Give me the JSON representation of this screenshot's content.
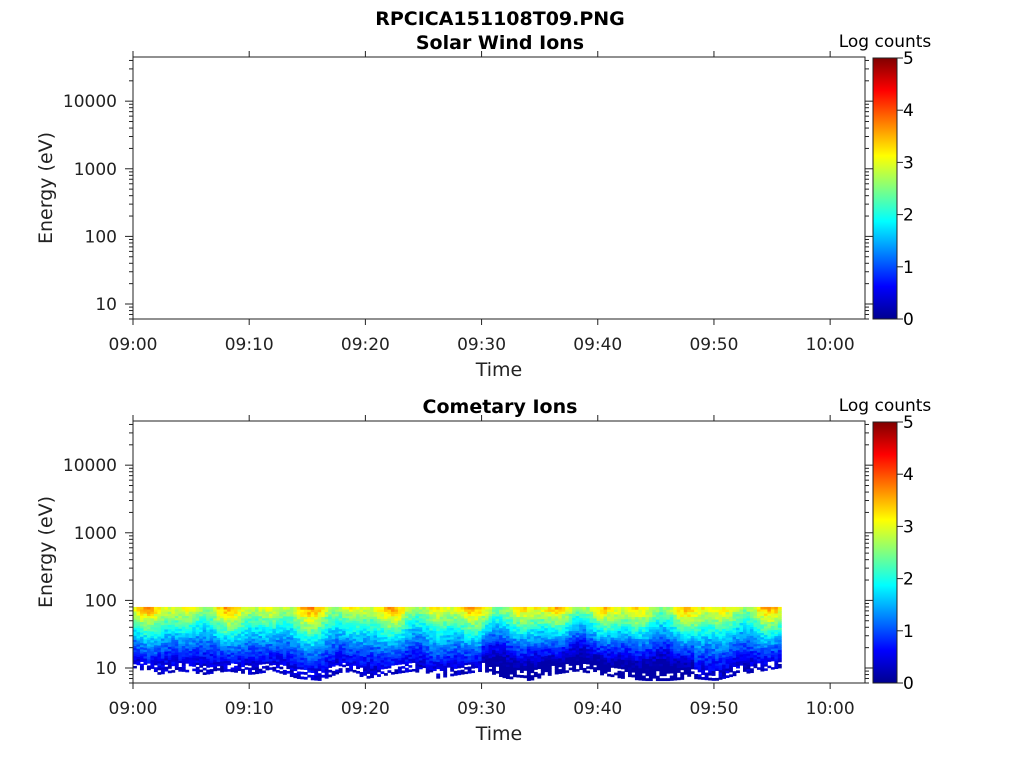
{
  "figure": {
    "title": "RPCICA151108T09.PNG"
  },
  "colormap": [
    "#00008f",
    "#0000ff",
    "#0080ff",
    "#00ffff",
    "#80ff80",
    "#ffff00",
    "#ff8000",
    "#ff0000",
    "#800000"
  ],
  "chart_data": [
    {
      "type": "heatmap",
      "title": "Solar Wind Ions",
      "xlabel": "Time",
      "ylabel": "Energy (eV)",
      "x_ticks": [
        "09:00",
        "09:10",
        "09:20",
        "09:30",
        "09:40",
        "09:50",
        "10:00"
      ],
      "xlim_minutes_after_0900": [
        0,
        63
      ],
      "y_scale": "log",
      "y_ticks": [
        "10",
        "100",
        "1000",
        "10000"
      ],
      "ylim": [
        6,
        45000
      ],
      "colorbar": {
        "label": "Log counts",
        "ticks": [
          "0",
          "1",
          "2",
          "3",
          "4",
          "5"
        ],
        "range": [
          0,
          5
        ]
      },
      "data_description": "no counts shown",
      "spectrogram": null
    },
    {
      "type": "heatmap",
      "title": "Cometary Ions",
      "xlabel": "Time",
      "ylabel": "Energy (eV)",
      "x_ticks": [
        "09:00",
        "09:10",
        "09:20",
        "09:30",
        "09:40",
        "09:50",
        "10:00"
      ],
      "xlim_minutes_after_0900": [
        0,
        63
      ],
      "y_scale": "log",
      "y_ticks": [
        "10",
        "100",
        "1000",
        "10000"
      ],
      "ylim": [
        6,
        45000
      ],
      "colorbar": {
        "label": "Log counts",
        "ticks": [
          "0",
          "1",
          "2",
          "3",
          "4",
          "5"
        ],
        "range": [
          0,
          5
        ]
      },
      "spectrogram": {
        "time_start_minutes": 0,
        "time_end_minutes": 55.5,
        "energy_top_eV": 80,
        "peak_log_counts_near_top": 4.0,
        "low_energy_edge_eV": [
          [
            0,
            10
          ],
          [
            2,
            8
          ],
          [
            4,
            9
          ],
          [
            6,
            8
          ],
          [
            8,
            9
          ],
          [
            10,
            8
          ],
          [
            12,
            9
          ],
          [
            14,
            7
          ],
          [
            16,
            6.5
          ],
          [
            18,
            9
          ],
          [
            20,
            7
          ],
          [
            22,
            8
          ],
          [
            24,
            9
          ],
          [
            26,
            7
          ],
          [
            28,
            8
          ],
          [
            30,
            9
          ],
          [
            32,
            7
          ],
          [
            34,
            6.5
          ],
          [
            36,
            8
          ],
          [
            38,
            9
          ],
          [
            40,
            8
          ],
          [
            42,
            7
          ],
          [
            44,
            6.5
          ],
          [
            46,
            6.5
          ],
          [
            48,
            7
          ],
          [
            50,
            6.5
          ],
          [
            52,
            8
          ],
          [
            54,
            9
          ],
          [
            55.5,
            10
          ]
        ]
      }
    }
  ]
}
